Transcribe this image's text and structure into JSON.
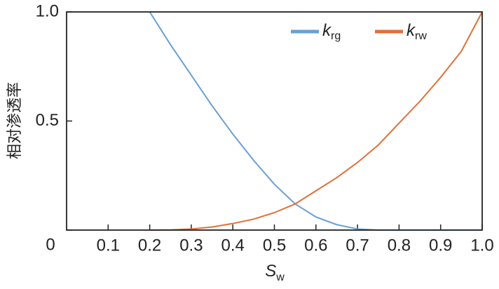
{
  "chart_data": {
    "type": "line",
    "xlabel": [
      "S",
      "w"
    ],
    "ylabel": "相对渗透率",
    "x": [
      0.2,
      0.25,
      0.3,
      0.35,
      0.4,
      0.45,
      0.5,
      0.55,
      0.6,
      0.65,
      0.7,
      0.75,
      0.8,
      0.85,
      0.9,
      0.95,
      1.0
    ],
    "series": [
      {
        "name": [
          "k",
          "rg"
        ],
        "color": "#6a9fd4",
        "values": [
          1,
          0.85,
          0.71,
          0.57,
          0.44,
          0.32,
          0.21,
          0.12,
          0.06,
          0.025,
          0.005,
          0,
          0,
          0,
          0,
          0,
          0
        ]
      },
      {
        "name": [
          "k",
          "rw"
        ],
        "color": "#e0703a",
        "values": [
          0,
          0.001,
          0.005,
          0.014,
          0.03,
          0.05,
          0.08,
          0.12,
          0.18,
          0.24,
          0.31,
          0.39,
          0.49,
          0.59,
          0.7,
          0.82,
          1
        ]
      }
    ],
    "xlim": [
      0,
      1
    ],
    "ylim": [
      0,
      1
    ],
    "xticks": [
      0.1,
      0.2,
      0.3,
      0.4,
      0.5,
      0.6,
      0.7,
      0.8,
      0.9,
      {
        "value": 1,
        "label": "1.0"
      }
    ],
    "yticks": [
      0,
      0.5,
      {
        "value": 1,
        "label": "1.0"
      }
    ],
    "legend": "top-right"
  }
}
